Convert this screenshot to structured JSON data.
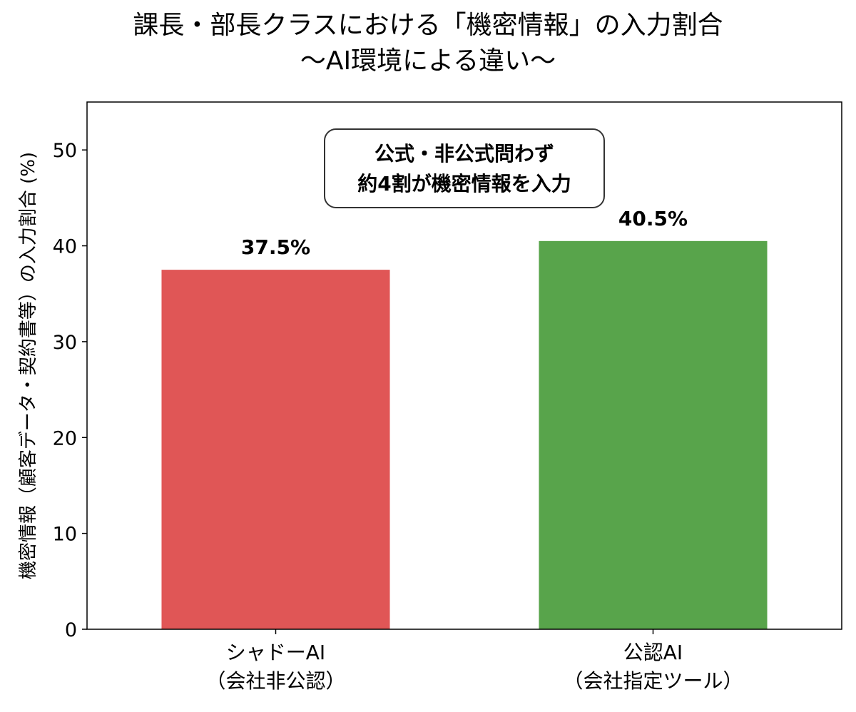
{
  "chart_data": {
    "type": "bar",
    "title": "課長・部長クラスにおける「機密情報」の入力割合",
    "subtitle": "〜AI環境による違い〜",
    "categories": [
      "シャドーAI\n（会社非公認）",
      "公認AI\n（会社指定ツール）"
    ],
    "values": [
      37.5,
      40.5
    ],
    "data_labels": [
      "37.5%",
      "40.5%"
    ],
    "colors": [
      "#e05656",
      "#58a44b"
    ],
    "xlabel": "",
    "ylabel": "機密情報（顧客データ・契約書等）の入力割合 (%)",
    "ylim": [
      0,
      55
    ],
    "yticks": [
      0,
      10,
      20,
      30,
      40,
      50
    ],
    "grid": false,
    "annotation": "公式・非公式問わず\n約4割が機密情報を入力"
  }
}
